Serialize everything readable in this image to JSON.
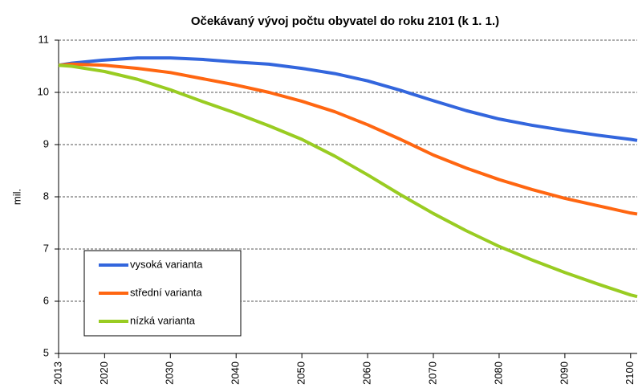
{
  "chart_data": {
    "type": "line",
    "title": "Očekávaný vývoj počtu obyvatel do roku 2101 (k 1. 1.)",
    "y_label": "mil.",
    "x": [
      2013,
      2015,
      2020,
      2025,
      2030,
      2035,
      2040,
      2045,
      2050,
      2055,
      2060,
      2065,
      2070,
      2075,
      2080,
      2085,
      2090,
      2095,
      2100,
      2101
    ],
    "series": [
      {
        "name": "vysoká varianta",
        "color": "#3366dd",
        "values": [
          10.52,
          10.56,
          10.62,
          10.66,
          10.66,
          10.63,
          10.58,
          10.54,
          10.46,
          10.36,
          10.22,
          10.04,
          9.84,
          9.65,
          9.49,
          9.37,
          9.27,
          9.18,
          9.1,
          9.08
        ]
      },
      {
        "name": "střední varianta",
        "color": "#ff6611",
        "values": [
          10.52,
          10.54,
          10.52,
          10.46,
          10.38,
          10.26,
          10.14,
          10.0,
          9.83,
          9.63,
          9.38,
          9.1,
          8.8,
          8.55,
          8.33,
          8.14,
          7.97,
          7.83,
          7.69,
          7.67
        ]
      },
      {
        "name": "nízká varianta",
        "color": "#99cc22",
        "values": [
          10.52,
          10.5,
          10.4,
          10.25,
          10.05,
          9.82,
          9.6,
          9.36,
          9.1,
          8.78,
          8.42,
          8.04,
          7.68,
          7.35,
          7.05,
          6.79,
          6.55,
          6.33,
          6.12,
          6.09
        ]
      }
    ],
    "xlim": [
      2013,
      2101
    ],
    "xticks": [
      2013,
      2020,
      2030,
      2040,
      2050,
      2060,
      2070,
      2080,
      2090,
      2100
    ],
    "ylim": [
      5,
      11
    ],
    "yticks": [
      5,
      6,
      7,
      8,
      9,
      10,
      11
    ],
    "grid": true,
    "legend": "lower left"
  }
}
